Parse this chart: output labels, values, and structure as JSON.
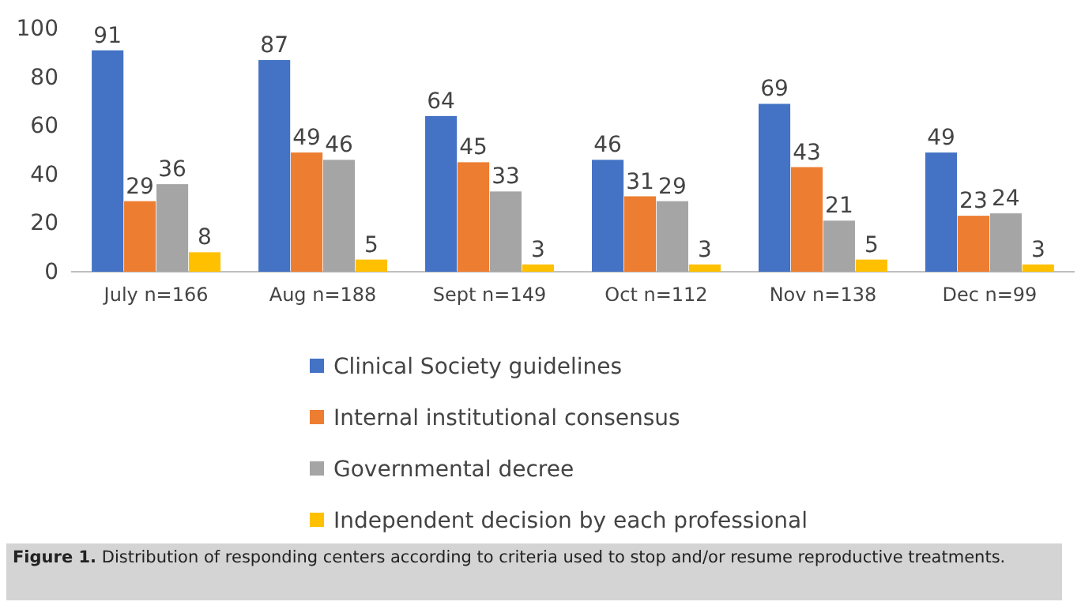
{
  "chart_data": {
    "type": "bar",
    "categories": [
      "July n=166",
      "Aug n=188",
      "Sept n=149",
      "Oct n=112",
      "Nov n=138",
      "Dec n=99"
    ],
    "series": [
      {
        "name": "Clinical Society guidelines",
        "color": "#4472c4",
        "values": [
          91,
          87,
          64,
          46,
          69,
          49
        ]
      },
      {
        "name": "Internal institutional consensus",
        "color": "#ed7d31",
        "values": [
          29,
          49,
          45,
          31,
          43,
          23
        ]
      },
      {
        "name": "Governmental decree",
        "color": "#a5a5a5",
        "values": [
          36,
          46,
          33,
          29,
          21,
          24
        ]
      },
      {
        "name": "Independent decision by each professional",
        "color": "#ffc000",
        "values": [
          8,
          5,
          3,
          3,
          5,
          3
        ]
      }
    ],
    "ylim": [
      0,
      100
    ],
    "yticks": [
      0,
      20,
      40,
      60,
      80,
      100
    ],
    "data_labels": true,
    "legend": "bottom",
    "grid": false,
    "annotations": [
      "Figure 1. Distribution of responding centers according to criteria used to stop and/or resume reproductive treatments."
    ]
  }
}
